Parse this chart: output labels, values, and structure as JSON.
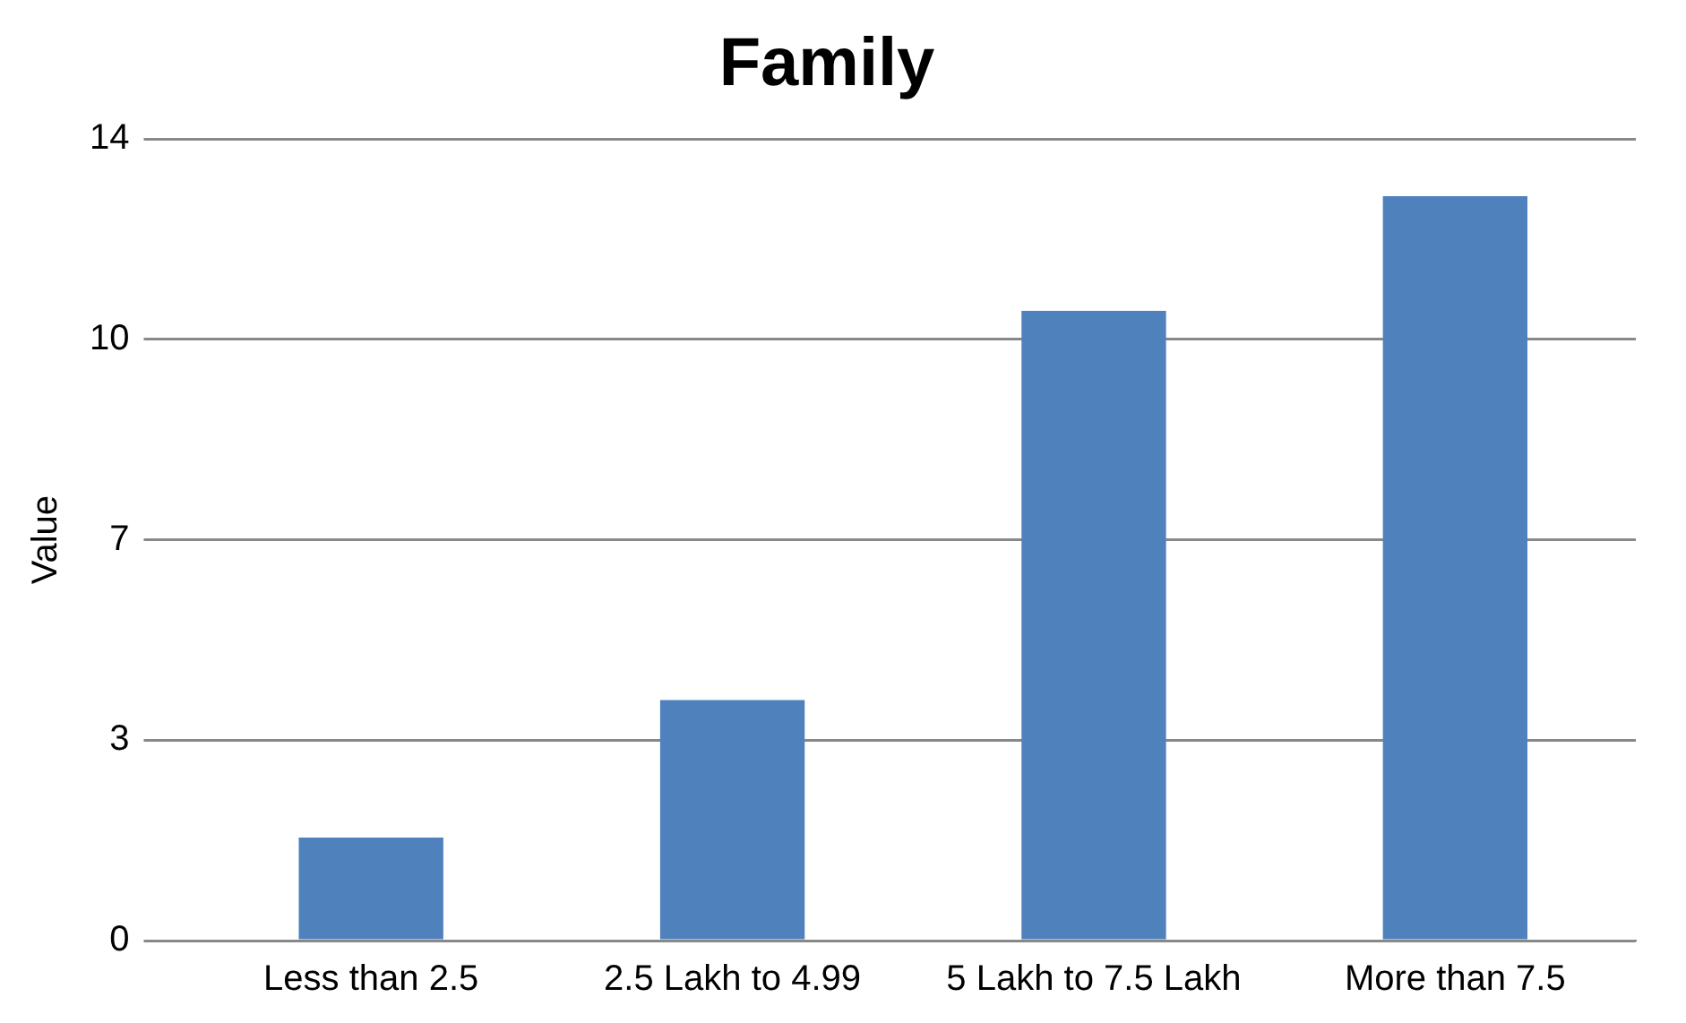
{
  "chart_data": {
    "type": "bar",
    "title": "Family",
    "ylabel": "Value",
    "categories": [
      "Less than 2.5",
      "2.5 Lakh to 4.99",
      "5 Lakh to 7.5 Lakh",
      "More than 7.5"
    ],
    "values": [
      1.8,
      4.2,
      11,
      13
    ],
    "color": "#4f81bd",
    "ylim": [
      0,
      14
    ],
    "yticks": [
      0,
      {
        "value": 3.5,
        "label": "3"
      },
      7,
      {
        "value": 10.5,
        "label": "10"
      },
      14
    ],
    "grid": "y"
  }
}
